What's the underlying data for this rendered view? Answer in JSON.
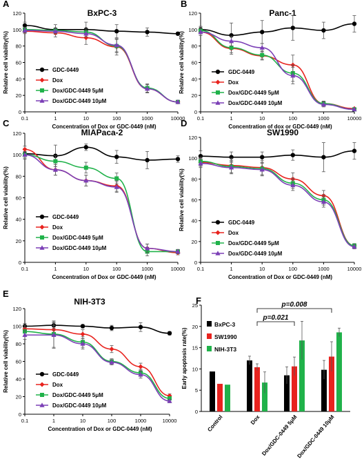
{
  "chart_data": [
    {
      "panel": "A",
      "type": "line",
      "title": "BxPC-3",
      "xlabel": "Concentration of Dox or GDC-0449 (nM)",
      "ylabel": "Relative cell viability(%)",
      "x": [
        0.1,
        1,
        10,
        100,
        1000,
        10000
      ],
      "xscale": "log",
      "xticks": [
        "0.1",
        "1",
        "10",
        "100",
        "1000",
        "10000"
      ],
      "ylim": [
        0,
        120
      ],
      "yticks": [
        "0",
        "20",
        "40",
        "60",
        "80",
        "100",
        "120"
      ],
      "legend_position": "lower-left",
      "series": [
        {
          "name": "GDC-0449",
          "color": "#000000",
          "marker": "circle",
          "values": [
            105,
            100,
            100,
            98,
            97,
            95
          ],
          "err": [
            4,
            6,
            9,
            8,
            5,
            2
          ]
        },
        {
          "name": "Dox",
          "color": "#e8231e",
          "marker": "diamond",
          "values": [
            98,
            96,
            90,
            79,
            28,
            12
          ],
          "err": [
            3,
            5,
            8,
            10,
            5,
            2
          ]
        },
        {
          "name": "Dox/GDC-0449 5μM",
          "color": "#20b24a",
          "marker": "square",
          "values": [
            100,
            99,
            97,
            80,
            29,
            12
          ],
          "err": [
            3,
            3,
            4,
            8,
            5,
            2
          ]
        },
        {
          "name": "Dox/GDC-0449 10μM",
          "color": "#7b3fb6",
          "marker": "triangle",
          "values": [
            99,
            98,
            95,
            81,
            28,
            12
          ],
          "err": [
            3,
            3,
            4,
            8,
            5,
            2
          ]
        }
      ]
    },
    {
      "panel": "B",
      "type": "line",
      "title": "Panc-1",
      "xlabel": "Concentration of dox or GDC-0449 (nM)",
      "ylabel": "Relative cell viability(%)",
      "x": [
        0.1,
        1,
        10,
        100,
        1000,
        10000
      ],
      "xscale": "log",
      "xticks": [
        "0.1",
        "1",
        "10",
        "100",
        "1000",
        "10000"
      ],
      "ylim": [
        0,
        120
      ],
      "yticks": [
        "0",
        "20",
        "40",
        "60",
        "80",
        "100",
        "120"
      ],
      "legend_position": "lower-left",
      "series": [
        {
          "name": "GDC-0449",
          "color": "#000000",
          "marker": "circle",
          "values": [
            100,
            93,
            97,
            102,
            99,
            107
          ],
          "err": [
            4,
            15,
            14,
            15,
            10,
            10
          ]
        },
        {
          "name": "Dox",
          "color": "#e8231e",
          "marker": "diamond",
          "values": [
            97,
            77,
            68,
            57,
            10,
            4
          ],
          "err": [
            4,
            7,
            5,
            12,
            3,
            1
          ]
        },
        {
          "name": "Dox/GDC-0449 5μM",
          "color": "#20b24a",
          "marker": "square",
          "values": [
            99,
            78,
            69,
            47,
            10,
            3
          ],
          "err": [
            4,
            6,
            5,
            10,
            3,
            1
          ]
        },
        {
          "name": "Dox/GDC-0449 10μM",
          "color": "#7b3fb6",
          "marker": "triangle",
          "values": [
            97,
            86,
            78,
            44,
            9,
            3
          ],
          "err": [
            4,
            6,
            5,
            10,
            3,
            1
          ]
        }
      ]
    },
    {
      "panel": "C",
      "type": "line",
      "title": "MIAPaca-2",
      "xlabel": "Concentration of Dox or GDC-0449 (nM)",
      "ylabel": "Relative cell viability(%)",
      "x": [
        0.1,
        1,
        10,
        100,
        1000,
        10000
      ],
      "xscale": "log",
      "xticks": [
        "0.1",
        "1",
        "10",
        "100",
        "1000",
        "10000"
      ],
      "ylim": [
        0,
        120
      ],
      "yticks": [
        "0",
        "20",
        "40",
        "60",
        "80",
        "100",
        "120"
      ],
      "legend_position": "lower-left",
      "series": [
        {
          "name": "GDC-0449",
          "color": "#000000",
          "marker": "circle",
          "values": [
            101,
            99,
            107,
            98,
            95,
            96
          ],
          "err": [
            5,
            10,
            3,
            6,
            8,
            3
          ]
        },
        {
          "name": "Dox",
          "color": "#e8231e",
          "marker": "diamond",
          "values": [
            105,
            86,
            76,
            71,
            13,
            9
          ],
          "err": [
            3,
            5,
            5,
            5,
            4,
            2
          ]
        },
        {
          "name": "Dox/GDC-0449 5μM",
          "color": "#20b24a",
          "marker": "square",
          "values": [
            100,
            94,
            88,
            78,
            10,
            10
          ],
          "err": [
            3,
            5,
            5,
            5,
            4,
            2
          ]
        },
        {
          "name": "Dox/GDC-0449 10μM",
          "color": "#7b3fb6",
          "marker": "triangle",
          "values": [
            100,
            86,
            76,
            70,
            13,
            10
          ],
          "err": [
            3,
            5,
            5,
            5,
            4,
            2
          ]
        }
      ]
    },
    {
      "panel": "D",
      "type": "line",
      "title": "SW1990",
      "xlabel": "Concentration of Dox or GDC-0449 (nM)",
      "ylabel": "Relative cell viability(%)",
      "x": [
        0.1,
        1,
        10,
        100,
        1000,
        10000
      ],
      "xscale": "log",
      "xticks": [
        "0.1",
        "1",
        "10",
        "100",
        "1000",
        "10000"
      ],
      "ylim": [
        0,
        120
      ],
      "yticks": [
        "0",
        "20",
        "40",
        "60",
        "80",
        "100",
        "120"
      ],
      "legend_position": "lower-left",
      "series": [
        {
          "name": "GDC-0449",
          "color": "#000000",
          "marker": "circle",
          "values": [
            102,
            101,
            101,
            103,
            101,
            107
          ],
          "err": [
            5,
            5,
            5,
            5,
            14,
            8
          ]
        },
        {
          "name": "Dox",
          "color": "#e8231e",
          "marker": "diamond",
          "values": [
            96,
            93,
            91,
            80,
            64,
            16
          ],
          "err": [
            4,
            7,
            7,
            6,
            5,
            2
          ]
        },
        {
          "name": "Dox/GDC-0449 5μM",
          "color": "#20b24a",
          "marker": "square",
          "values": [
            97,
            92,
            90,
            76,
            60,
            16
          ],
          "err": [
            4,
            6,
            6,
            5,
            5,
            2
          ]
        },
        {
          "name": "Dox/GDC-0449 10μM",
          "color": "#7b3fb6",
          "marker": "triangle",
          "values": [
            95,
            91,
            89,
            74,
            58,
            15
          ],
          "err": [
            4,
            6,
            6,
            5,
            5,
            2
          ]
        }
      ]
    },
    {
      "panel": "E",
      "type": "line",
      "title": "NIH-3T3",
      "xlabel": "Concentration of Dox or GDC-0449 (nM)",
      "ylabel": "Relative cell viability(%)",
      "x": [
        0.1,
        1,
        10,
        100,
        1000,
        10000
      ],
      "xscale": "log",
      "xticks": [
        "0.1",
        "1",
        "10",
        "100",
        "1000",
        "10000"
      ],
      "ylim": [
        0,
        120
      ],
      "yticks": [
        "0",
        "20",
        "40",
        "60",
        "80",
        "100",
        "120"
      ],
      "legend_position": "lower-left",
      "series": [
        {
          "name": "GDC-0449",
          "color": "#000000",
          "marker": "circle",
          "values": [
            100,
            101,
            100,
            98,
            99,
            92
          ],
          "err": [
            3,
            3,
            2,
            3,
            5,
            2
          ]
        },
        {
          "name": "Dox",
          "color": "#e8231e",
          "marker": "diamond",
          "values": [
            97,
            96,
            91,
            74,
            54,
            21
          ],
          "err": [
            4,
            5,
            5,
            4,
            4,
            2
          ]
        },
        {
          "name": "Dox/GDC-0449 5μM",
          "color": "#20b24a",
          "marker": "square",
          "values": [
            94,
            91,
            82,
            60,
            47,
            18
          ],
          "err": [
            5,
            15,
            6,
            3,
            4,
            2
          ]
        },
        {
          "name": "Dox/GDC-0449 10μM",
          "color": "#7b3fb6",
          "marker": "triangle",
          "values": [
            90,
            90,
            80,
            59,
            45,
            15
          ],
          "err": [
            5,
            15,
            6,
            3,
            4,
            2
          ]
        }
      ]
    },
    {
      "panel": "F",
      "type": "bar",
      "ylabel": "Early apoptosis rate(%)",
      "categories": [
        "Control",
        "Dox",
        "Dox/GDC-0449 5μM",
        "Dox/GDC-0449 10μM"
      ],
      "ylim": [
        0,
        25
      ],
      "yticks": [
        "0",
        "5",
        "10",
        "15",
        "20",
        "25"
      ],
      "legend_position": "top-left",
      "series": [
        {
          "name": "BxPC-3",
          "color": "#000000",
          "values": [
            9.4,
            12.0,
            8.5,
            9.8
          ],
          "err": [
            0,
            1.0,
            2.0,
            2.2
          ]
        },
        {
          "name": "SW1990",
          "color": "#e8231e",
          "values": [
            6.5,
            10.4,
            10.6,
            12.9
          ],
          "err": [
            0,
            0.8,
            2.2,
            3.5
          ]
        },
        {
          "name": "NIH-3T3",
          "color": "#20b24a",
          "values": [
            6.3,
            6.8,
            16.7,
            18.6
          ],
          "err": [
            0,
            2.5,
            4.5,
            1.0
          ]
        }
      ],
      "annotations": [
        "p=0.021",
        "p=0.008"
      ]
    }
  ]
}
